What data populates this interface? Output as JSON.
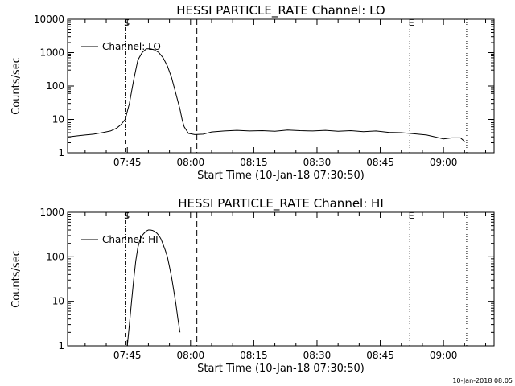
{
  "footer": {
    "timestamp": "10-Jan-2018 08:05"
  },
  "chart_data": [
    {
      "type": "line",
      "title": "HESSI PARTICLE_RATE Channel: LO",
      "xlabel": "Start Time (10-Jan-18 07:30:50)",
      "ylabel": "Counts/sec",
      "yscale": "log",
      "ylim": [
        1,
        10000
      ],
      "xlim": [
        "07:30:50",
        "09:12:00"
      ],
      "x_ticks": [
        "07:45",
        "08:00",
        "08:15",
        "08:30",
        "08:45",
        "09:00"
      ],
      "y_ticks": [
        "1",
        "10",
        "100",
        "1000",
        "10000"
      ],
      "legend": {
        "position": "top-left",
        "entries": [
          "Channel: LO"
        ]
      },
      "markers": [
        {
          "label": "S",
          "time": "07:44:30",
          "style": "dash-dot"
        },
        {
          "label": "",
          "time": "08:01:30",
          "style": "dashed"
        },
        {
          "label": "E",
          "time": "08:52:00",
          "style": "dotted"
        },
        {
          "label": "",
          "time": "09:05:30",
          "style": "dotted"
        }
      ],
      "series": [
        {
          "name": "Channel: LO",
          "x": [
            "07:31:00",
            "07:33:00",
            "07:35:00",
            "07:37:00",
            "07:39:00",
            "07:41:00",
            "07:42:30",
            "07:43:30",
            "07:44:30",
            "07:45:30",
            "07:46:30",
            "07:47:30",
            "07:48:30",
            "07:49:30",
            "07:50:30",
            "07:51:30",
            "07:52:30",
            "07:53:30",
            "07:54:30",
            "07:55:30",
            "07:56:30",
            "07:57:30",
            "07:58:00",
            "07:58:30",
            "07:59:30",
            "08:01:00",
            "08:03:00",
            "08:05:00",
            "08:08:00",
            "08:11:00",
            "08:14:00",
            "08:17:00",
            "08:20:00",
            "08:23:00",
            "08:26:00",
            "08:29:00",
            "08:32:00",
            "08:35:00",
            "08:38:00",
            "08:41:00",
            "08:44:00",
            "08:47:00",
            "08:50:00",
            "08:52:00",
            "08:54:00",
            "08:56:00",
            "08:58:00",
            "09:00:00",
            "09:02:00",
            "09:04:00",
            "09:05:00"
          ],
          "y": [
            3,
            3.2,
            3.4,
            3.6,
            4,
            4.5,
            5.5,
            7,
            10,
            30,
            150,
            600,
            1000,
            1300,
            1300,
            1200,
            1000,
            700,
            400,
            180,
            60,
            20,
            10,
            6,
            3.8,
            3.5,
            3.6,
            4.2,
            4.5,
            4.7,
            4.5,
            4.6,
            4.4,
            4.8,
            4.6,
            4.5,
            4.7,
            4.4,
            4.6,
            4.3,
            4.5,
            4.1,
            4,
            3.8,
            3.6,
            3.4,
            3,
            2.6,
            2.8,
            2.8,
            2.2
          ]
        }
      ]
    },
    {
      "type": "line",
      "title": "HESSI PARTICLE_RATE Channel: HI",
      "xlabel": "Start Time (10-Jan-18 07:30:50)",
      "ylabel": "Counts/sec",
      "yscale": "log",
      "ylim": [
        1,
        1000
      ],
      "xlim": [
        "07:30:50",
        "09:12:00"
      ],
      "x_ticks": [
        "07:45",
        "08:00",
        "08:15",
        "08:30",
        "08:45",
        "09:00"
      ],
      "y_ticks": [
        "1",
        "10",
        "100",
        "1000"
      ],
      "legend": {
        "position": "top-left",
        "entries": [
          "Channel: HI"
        ]
      },
      "markers": [
        {
          "label": "S",
          "time": "07:44:30",
          "style": "dash-dot"
        },
        {
          "label": "",
          "time": "08:01:30",
          "style": "dashed"
        },
        {
          "label": "E",
          "time": "08:52:00",
          "style": "dotted"
        },
        {
          "label": "",
          "time": "09:05:30",
          "style": "dotted"
        }
      ],
      "series": [
        {
          "name": "Channel: HI",
          "x": [
            "07:45:00",
            "07:45:30",
            "07:46:00",
            "07:46:30",
            "07:47:00",
            "07:47:30",
            "07:48:00",
            "07:48:30",
            "07:49:00",
            "07:49:30",
            "07:50:00",
            "07:50:30",
            "07:51:00",
            "07:51:30",
            "07:52:00",
            "07:52:30",
            "07:53:00",
            "07:53:30",
            "07:54:00",
            "07:54:30",
            "07:55:00",
            "07:55:30",
            "07:56:00",
            "07:56:30",
            "07:57:00",
            "07:57:30"
          ],
          "y": [
            1,
            3,
            10,
            30,
            80,
            160,
            240,
            300,
            340,
            380,
            400,
            400,
            390,
            370,
            340,
            300,
            250,
            190,
            140,
            100,
            60,
            35,
            18,
            9,
            4,
            2
          ]
        }
      ]
    }
  ]
}
